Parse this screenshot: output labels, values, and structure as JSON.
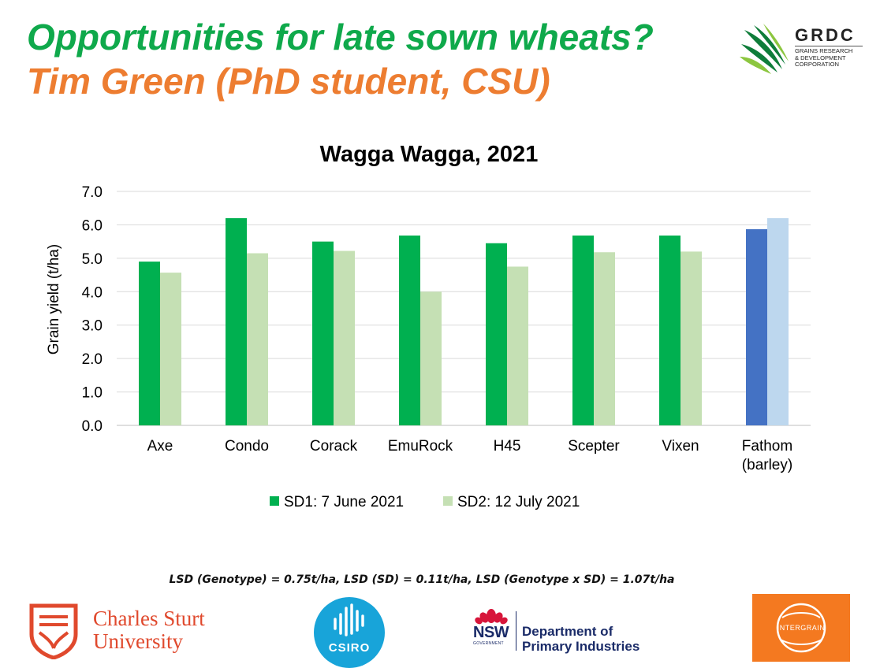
{
  "header": {
    "title": "Opportunities for late sown wheats?",
    "subtitle": "Tim Green (PhD student, CSU)"
  },
  "logos": {
    "grdc": {
      "name": "GRDC",
      "subtitle": "GRAINS RESEARCH\n& DEVELOPMENT\nCORPORATION",
      "icon": "wheat-leaf-icon"
    },
    "csu": {
      "name": "Charles Sturt\nUniversity",
      "icon": "csu-crest-icon"
    },
    "csiro": {
      "name": "CSIRO",
      "icon": "csiro-soundwave-icon"
    },
    "nsw": {
      "word": "NSW",
      "gov": "GOVERNMENT",
      "department": "Department of\nPrimary Industries",
      "icon": "waratah-icon"
    },
    "intergrain": {
      "name": "INTERGRAIN",
      "icon": "intergrain-swoosh-icon"
    }
  },
  "footnote": "LSD (Genotype) = 0.75t/ha, LSD (SD) = 0.11t/ha, LSD (Genotype x SD) = 1.07t/ha",
  "colors": {
    "title": "#0fa94b",
    "subtitle": "#ed7d31",
    "sd1": "#00b050",
    "sd2": "#c5e0b4",
    "barley_sd1": "#4472c4",
    "barley_sd2": "#bdd7ee",
    "grid": "#d9d9d9"
  },
  "chart_data": {
    "type": "bar",
    "title": "Wagga Wagga, 2021",
    "ylabel": "Grain yield (t/ha)",
    "xlabel": "",
    "ylim": [
      0,
      7
    ],
    "yticks": [
      "0.0",
      "1.0",
      "2.0",
      "3.0",
      "4.0",
      "5.0",
      "6.0",
      "7.0"
    ],
    "grid": true,
    "legend_position": "bottom",
    "categories": [
      "Axe",
      "Condo",
      "Corack",
      "EmuRock",
      "H45",
      "Scepter",
      "Vixen",
      "Fathom (barley)"
    ],
    "series": [
      {
        "name": "SD1: 7 June 2021",
        "values": [
          4.9,
          6.2,
          5.5,
          5.68,
          5.45,
          5.68,
          5.68,
          5.87
        ]
      },
      {
        "name": "SD2: 12 July 2021",
        "values": [
          4.57,
          5.15,
          5.22,
          4.0,
          4.75,
          5.18,
          5.2,
          6.2
        ]
      }
    ]
  }
}
